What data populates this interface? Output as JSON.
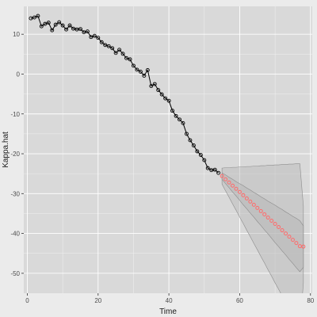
{
  "chart_data": {
    "type": "line",
    "xlabel": "Time",
    "ylabel": "Kappa.hat",
    "xlim": [
      -1,
      80.5
    ],
    "ylim": [
      -55,
      17
    ],
    "x_ticks": [
      0,
      20,
      40,
      60,
      80
    ],
    "y_ticks": [
      -50,
      -40,
      -30,
      -20,
      -10,
      0,
      10
    ],
    "grid": true,
    "colors": {
      "panel_background": "#d9d9d9",
      "page_background": "#ebebeb",
      "observed_line": "#000000",
      "forecast_points": "#ff6b6b",
      "interval_fill": "#b8b8b8",
      "interval_border": "#8c8c8c"
    },
    "observed": {
      "x": [
        1,
        2,
        3,
        4,
        5,
        6,
        7,
        8,
        9,
        10,
        11,
        12,
        13,
        14,
        15,
        16,
        17,
        18,
        19,
        20,
        21,
        22,
        23,
        24,
        25,
        26,
        27,
        28,
        29,
        30,
        31,
        32,
        33,
        34,
        35,
        36,
        37,
        38,
        39,
        40,
        41,
        42,
        43,
        44,
        45,
        46,
        47,
        48,
        49,
        50,
        51,
        52,
        53,
        54
      ],
      "y": [
        14.0,
        14.2,
        14.6,
        12.0,
        12.6,
        12.9,
        11.0,
        12.4,
        13.0,
        12.2,
        11.2,
        12.2,
        11.4,
        11.2,
        11.3,
        10.5,
        10.7,
        9.3,
        9.6,
        9.1,
        8.0,
        7.3,
        7.0,
        6.5,
        5.3,
        6.1,
        5.1,
        4.0,
        3.7,
        2.1,
        1.1,
        0.6,
        -0.4,
        1.0,
        -3.0,
        -2.5,
        -4.0,
        -5.1,
        -6.1,
        -6.7,
        -9.2,
        -10.5,
        -11.4,
        -12.3,
        -15.0,
        -16.6,
        -17.9,
        -19.4,
        -20.3,
        -21.6,
        -23.6,
        -24.1,
        -24.0,
        -24.8
      ]
    },
    "forecast": {
      "x": [
        55,
        56,
        57,
        58,
        59,
        60,
        61,
        62,
        63,
        64,
        65,
        66,
        67,
        68,
        69,
        70,
        71,
        72,
        73,
        74,
        75,
        76,
        77,
        78
      ],
      "y": [
        -25.6,
        -26.4,
        -27.2,
        -28.0,
        -28.8,
        -29.6,
        -30.4,
        -31.2,
        -32.0,
        -32.8,
        -33.6,
        -34.4,
        -35.2,
        -36.0,
        -36.8,
        -37.6,
        -38.4,
        -39.2,
        -40.0,
        -40.8,
        -41.6,
        -42.4,
        -43.2,
        -43.3
      ],
      "inner_band": {
        "lower": [
          -26.4,
          -27.5,
          -28.5,
          -29.6,
          -30.6,
          -31.7,
          -32.8,
          -33.8,
          -34.9,
          -35.9,
          -37.0,
          -38.0,
          -39.1,
          -40.1,
          -41.2,
          -42.3,
          -43.3,
          -44.4,
          -45.4,
          -46.5,
          -47.5,
          -48.6,
          -49.6,
          -48.5
        ],
        "upper": [
          -24.8,
          -25.3,
          -25.9,
          -26.4,
          -27.0,
          -27.5,
          -28.0,
          -28.6,
          -29.1,
          -29.7,
          -30.2,
          -30.8,
          -31.3,
          -31.9,
          -32.4,
          -32.9,
          -33.5,
          -34.0,
          -34.6,
          -35.1,
          -35.7,
          -36.2,
          -36.8,
          -38.1
        ]
      },
      "outer_band": {
        "lower": [
          -27.6,
          -29.3,
          -30.9,
          -32.6,
          -34.2,
          -35.9,
          -37.5,
          -39.2,
          -40.8,
          -42.5,
          -44.1,
          -45.8,
          -47.4,
          -49.1,
          -50.7,
          -52.4,
          -54.0,
          -55.7,
          -57.3,
          -59.0,
          -60.6,
          -62.3,
          -63.9,
          -52.4
        ],
        "upper": [
          -23.6,
          -23.5,
          -23.5,
          -23.4,
          -23.4,
          -23.3,
          -23.3,
          -23.2,
          -23.2,
          -23.1,
          -23.1,
          -23.0,
          -23.0,
          -22.9,
          -22.9,
          -22.8,
          -22.8,
          -22.7,
          -22.7,
          -22.6,
          -22.6,
          -22.5,
          -22.5,
          -33.2
        ]
      }
    }
  }
}
